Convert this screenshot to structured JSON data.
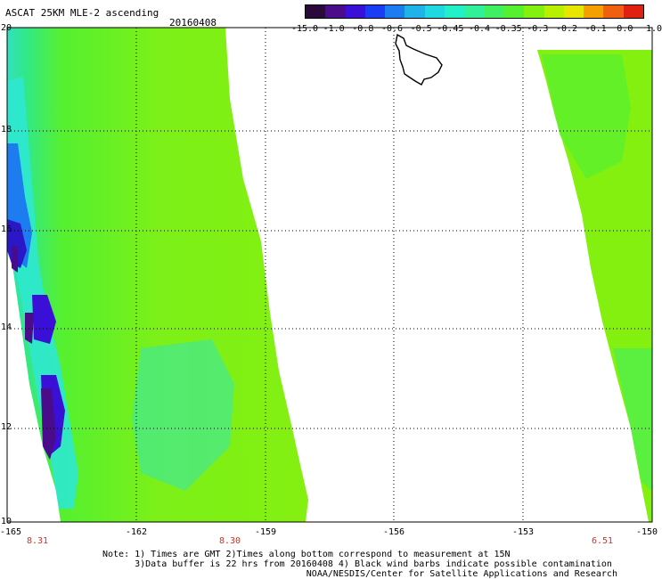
{
  "header": {
    "title": "ASCAT 25KM MLE-2 ascending",
    "date": "20160408"
  },
  "colorbar": {
    "colors": [
      "#2a0a3a",
      "#4b0c8c",
      "#3a10d8",
      "#1a3cf5",
      "#1c7cf0",
      "#1fb3e8",
      "#1fd8e0",
      "#22f0c8",
      "#30f09a",
      "#40f060",
      "#55f030",
      "#84f010",
      "#b8f000",
      "#e6e600",
      "#f5a000",
      "#f06010",
      "#e02010"
    ],
    "labels": [
      "-15.0",
      "-1.0",
      "-0.8",
      "-0.6",
      "-0.5",
      "-0.45",
      "-0.4",
      "-0.35",
      "-0.3",
      "-0.2",
      "-0.1",
      "0.0",
      "1.0"
    ]
  },
  "axes": {
    "y_labels": [
      "20",
      "18",
      "16",
      "14",
      "12",
      "10"
    ],
    "x_labels": [
      "-165",
      "-162",
      "-159",
      "-156",
      "-153",
      "-150"
    ],
    "time_labels": [
      "8.31",
      "8.30",
      "6.51"
    ]
  },
  "notes": [
    "Note: 1) Times are GMT 2)Times along bottom correspond to measurement at 15N",
    "      3)Data buffer is 22 hrs from 20160408 4) Black wind barbs indicate possible contamination",
    "                                      NOAA/NESDIS/Center for Satellite Applications and Research"
  ]
}
